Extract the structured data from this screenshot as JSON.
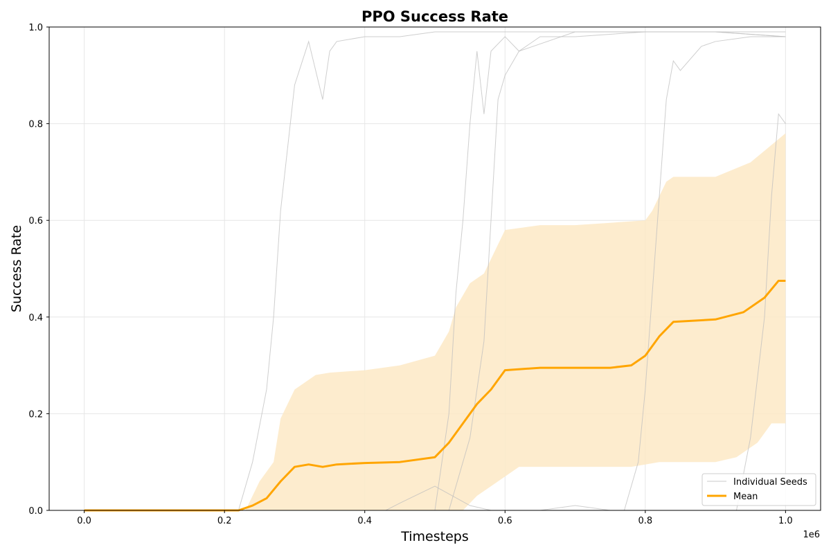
{
  "chart_data": {
    "type": "line",
    "title": "PPO Success Rate",
    "xlabel": "Timesteps",
    "ylabel": "Success Rate",
    "x_offset_label": "1e6",
    "xlim": [
      -0.05,
      1.05
    ],
    "ylim": [
      0,
      1
    ],
    "x_tick_values": [
      0.0,
      0.2,
      0.4,
      0.6,
      0.8,
      1.0
    ],
    "x_tick_labels": [
      "0.0",
      "0.2",
      "0.4",
      "0.6",
      "0.8",
      "1.0"
    ],
    "y_tick_values": [
      0.0,
      0.2,
      0.4,
      0.6,
      0.8,
      1.0
    ],
    "y_tick_labels": [
      "0.0",
      "0.2",
      "0.4",
      "0.6",
      "0.8",
      "1.0"
    ],
    "grid": true,
    "legend_position": "lower right",
    "legend": [
      {
        "label": "Individual Seeds",
        "color": "#c8c8c8",
        "style": "thin-line"
      },
      {
        "label": "Mean",
        "color": "#ffa500",
        "style": "thick-line"
      }
    ],
    "colors": {
      "mean": "#ffa500",
      "band": "#fde9c6",
      "seeds": "#bdbdbd"
    },
    "series": [
      {
        "name": "Mean",
        "x": [
          0.0,
          0.22,
          0.24,
          0.26,
          0.28,
          0.3,
          0.32,
          0.34,
          0.36,
          0.4,
          0.45,
          0.5,
          0.52,
          0.54,
          0.56,
          0.58,
          0.6,
          0.65,
          0.7,
          0.75,
          0.78,
          0.8,
          0.82,
          0.84,
          0.9,
          0.94,
          0.97,
          0.99,
          1.0
        ],
        "y": [
          0.0,
          0.0,
          0.01,
          0.025,
          0.06,
          0.09,
          0.095,
          0.09,
          0.095,
          0.098,
          0.1,
          0.11,
          0.14,
          0.18,
          0.22,
          0.25,
          0.29,
          0.295,
          0.295,
          0.295,
          0.3,
          0.32,
          0.36,
          0.39,
          0.395,
          0.41,
          0.44,
          0.475,
          0.475
        ]
      },
      {
        "name": "Upper band",
        "x": [
          0.0,
          0.23,
          0.25,
          0.27,
          0.28,
          0.3,
          0.33,
          0.35,
          0.4,
          0.45,
          0.5,
          0.52,
          0.53,
          0.55,
          0.57,
          0.6,
          0.65,
          0.7,
          0.75,
          0.8,
          0.81,
          0.82,
          0.83,
          0.84,
          0.9,
          0.95,
          1.0
        ],
        "y": [
          0.0,
          0.0,
          0.06,
          0.1,
          0.19,
          0.25,
          0.28,
          0.285,
          0.29,
          0.3,
          0.32,
          0.37,
          0.42,
          0.47,
          0.49,
          0.58,
          0.59,
          0.59,
          0.595,
          0.6,
          0.62,
          0.65,
          0.68,
          0.69,
          0.69,
          0.72,
          0.78
        ]
      },
      {
        "name": "Lower band",
        "x": [
          0.0,
          0.5,
          0.54,
          0.56,
          0.58,
          0.62,
          0.75,
          0.78,
          0.8,
          0.82,
          0.9,
          0.93,
          0.96,
          0.98,
          1.0
        ],
        "y": [
          0.0,
          0.0,
          0.0,
          0.03,
          0.05,
          0.09,
          0.09,
          0.09,
          0.095,
          0.1,
          0.1,
          0.11,
          0.14,
          0.18,
          0.18
        ]
      },
      {
        "name": "Seed 1",
        "x": [
          0.0,
          0.22,
          0.24,
          0.26,
          0.27,
          0.28,
          0.3,
          0.32,
          0.34,
          0.35,
          0.36,
          0.4,
          0.45,
          0.5,
          0.6,
          0.7,
          0.8,
          0.9,
          1.0
        ],
        "y": [
          0.0,
          0.0,
          0.1,
          0.25,
          0.4,
          0.62,
          0.88,
          0.97,
          0.85,
          0.95,
          0.97,
          0.98,
          0.98,
          0.99,
          0.99,
          0.99,
          0.99,
          0.99,
          0.99
        ]
      },
      {
        "name": "Seed 2",
        "x": [
          0.0,
          0.5,
          0.52,
          0.53,
          0.54,
          0.55,
          0.56,
          0.57,
          0.58,
          0.6,
          0.62,
          0.7,
          0.8,
          0.9,
          1.0
        ],
        "y": [
          0.0,
          0.0,
          0.2,
          0.45,
          0.6,
          0.8,
          0.95,
          0.82,
          0.95,
          0.98,
          0.95,
          0.99,
          0.99,
          0.99,
          0.98
        ]
      },
      {
        "name": "Seed 3",
        "x": [
          0.0,
          0.52,
          0.55,
          0.57,
          0.58,
          0.59,
          0.6,
          0.62,
          0.65,
          0.7,
          0.8,
          0.9,
          1.0
        ],
        "y": [
          0.0,
          0.0,
          0.15,
          0.35,
          0.6,
          0.85,
          0.9,
          0.95,
          0.98,
          0.98,
          0.99,
          0.99,
          0.98
        ]
      },
      {
        "name": "Seed 4",
        "x": [
          0.0,
          0.77,
          0.79,
          0.8,
          0.81,
          0.82,
          0.83,
          0.84,
          0.85,
          0.88,
          0.9,
          0.95,
          1.0
        ],
        "y": [
          0.0,
          0.0,
          0.1,
          0.25,
          0.45,
          0.65,
          0.85,
          0.93,
          0.91,
          0.96,
          0.97,
          0.98,
          0.98
        ]
      },
      {
        "name": "Seed 5",
        "x": [
          0.0,
          0.93,
          0.95,
          0.97,
          0.98,
          0.99,
          1.0
        ],
        "y": [
          0.0,
          0.0,
          0.15,
          0.4,
          0.65,
          0.82,
          0.8
        ]
      },
      {
        "name": "Seed 6",
        "x": [
          0.0,
          0.43,
          0.45,
          0.5,
          0.55,
          0.58,
          0.65,
          0.7,
          0.75,
          0.8,
          0.9,
          1.0
        ],
        "y": [
          0.0,
          0.0,
          0.015,
          0.05,
          0.01,
          0.0,
          0.0,
          0.01,
          0.0,
          0.0,
          0.0,
          0.0
        ]
      }
    ]
  }
}
